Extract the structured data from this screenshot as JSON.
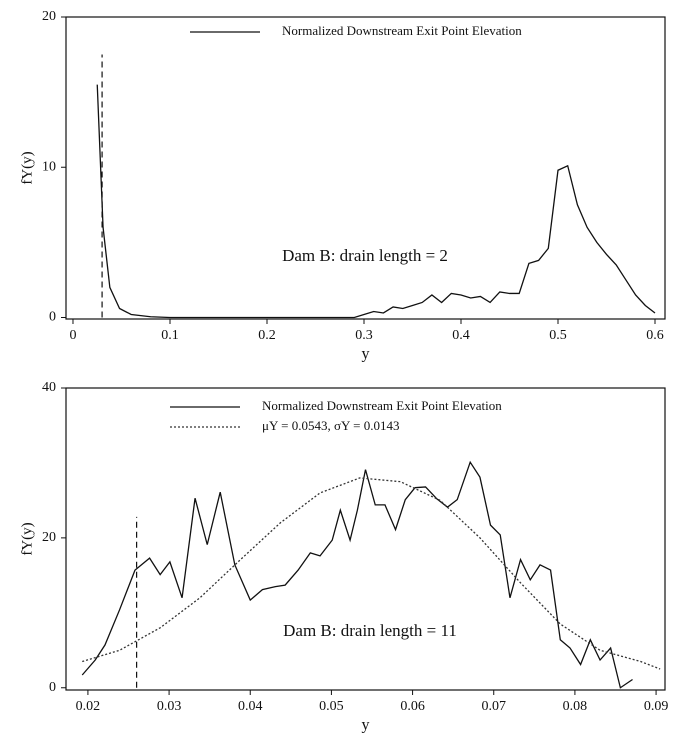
{
  "chart_data": [
    {
      "type": "line",
      "x_label": "y",
      "y_label": "fY(y)",
      "annotation": "Dam B: drain length = 2",
      "xlim": [
        -0.0072,
        0.6103
      ],
      "ylim": [
        -0.1,
        20
      ],
      "xticks": [
        0,
        0.1,
        0.2,
        0.3,
        0.4,
        0.5,
        0.6
      ],
      "yticks": [
        0,
        10,
        20
      ],
      "grid": false,
      "legend": "top",
      "series": [
        {
          "name": "Normalized Downstream Exit Point Elevation",
          "color": "#111111",
          "style": "solid",
          "x": [
            0.025,
            0.031,
            0.038,
            0.048,
            0.06,
            0.08,
            0.1,
            0.2,
            0.29,
            0.3,
            0.31,
            0.32,
            0.33,
            0.34,
            0.35,
            0.36,
            0.37,
            0.38,
            0.39,
            0.4,
            0.41,
            0.42,
            0.43,
            0.44,
            0.45,
            0.46,
            0.47,
            0.48,
            0.49,
            0.5,
            0.51,
            0.52,
            0.53,
            0.54,
            0.55,
            0.56,
            0.57,
            0.58,
            0.59,
            0.6
          ],
          "values": [
            15.5,
            6,
            2,
            0.6,
            0.2,
            0.05,
            0,
            0,
            0,
            0.2,
            0.4,
            0.3,
            0.7,
            0.6,
            0.8,
            1.0,
            1.5,
            1.0,
            1.6,
            1.5,
            1.3,
            1.4,
            1.0,
            1.7,
            1.6,
            1.6,
            3.6,
            3.8,
            4.6,
            9.8,
            10.1,
            7.5,
            6.0,
            5.0,
            4.2,
            3.5,
            2.5,
            1.5,
            0.8,
            0.3
          ]
        }
      ],
      "vlines": [
        {
          "x": 0.03,
          "ymax": 17.5
        }
      ]
    },
    {
      "type": "line",
      "x_label": "y",
      "y_label": "fY(y)",
      "annotation": "Dam B: drain length = 11",
      "xlim": [
        0.0173,
        0.0911
      ],
      "ylim": [
        -0.3,
        40
      ],
      "xticks": [
        0.02,
        0.03,
        0.04,
        0.05,
        0.06,
        0.07,
        0.08,
        0.09
      ],
      "yticks": [
        0,
        20,
        40
      ],
      "grid": false,
      "legend": "top",
      "series": [
        {
          "name": "Normalized Downstream Exit Point Elevation",
          "color": "#111111",
          "style": "solid",
          "x": [
            0.0193,
            0.0209,
            0.0221,
            0.0239,
            0.0258,
            0.0276,
            0.0289,
            0.0301,
            0.0316,
            0.0332,
            0.0347,
            0.0363,
            0.0381,
            0.04,
            0.0415,
            0.0431,
            0.0443,
            0.0459,
            0.0474,
            0.0486,
            0.0501,
            0.0511,
            0.0523,
            0.0532,
            0.0542,
            0.0554,
            0.0566,
            0.0579,
            0.0591,
            0.0603,
            0.0616,
            0.063,
            0.0643,
            0.0655,
            0.0671,
            0.0683,
            0.0696,
            0.0708,
            0.072,
            0.0733,
            0.0745,
            0.0757,
            0.077,
            0.0782,
            0.0794,
            0.0807,
            0.0819,
            0.0831,
            0.0844,
            0.0856,
            0.0871
          ],
          "values": [
            1.7,
            3.7,
            5.7,
            10.4,
            15.7,
            17.3,
            15.1,
            16.8,
            12.0,
            25.3,
            19.1,
            26.1,
            16.4,
            11.7,
            13.1,
            13.5,
            13.7,
            15.7,
            18.0,
            17.6,
            19.7,
            23.7,
            19.7,
            23.7,
            29.1,
            24.4,
            24.4,
            21.1,
            25.1,
            26.7,
            26.8,
            25.2,
            24.1,
            25.1,
            30.1,
            28.1,
            21.7,
            20.4,
            12.0,
            17.1,
            14.4,
            16.4,
            15.7,
            6.4,
            5.3,
            3.1,
            6.4,
            3.7,
            5.3,
            0,
            1.1
          ]
        },
        {
          "name": "μY = 0.0543, σY = 0.0143",
          "color": "#333333",
          "style": "dotted",
          "x": [
            0.0193,
            0.0239,
            0.0289,
            0.0338,
            0.0387,
            0.0437,
            0.0486,
            0.0535,
            0.0585,
            0.0634,
            0.0683,
            0.0733,
            0.0782,
            0.0831,
            0.0881,
            0.0905
          ],
          "values": [
            3.5,
            5,
            8,
            12,
            17,
            22,
            26,
            28,
            27.5,
            25,
            20,
            14,
            8.5,
            5,
            3.5,
            2.5
          ]
        }
      ],
      "vlines": [
        {
          "x": 0.026,
          "ymax": 22.8
        }
      ]
    }
  ]
}
